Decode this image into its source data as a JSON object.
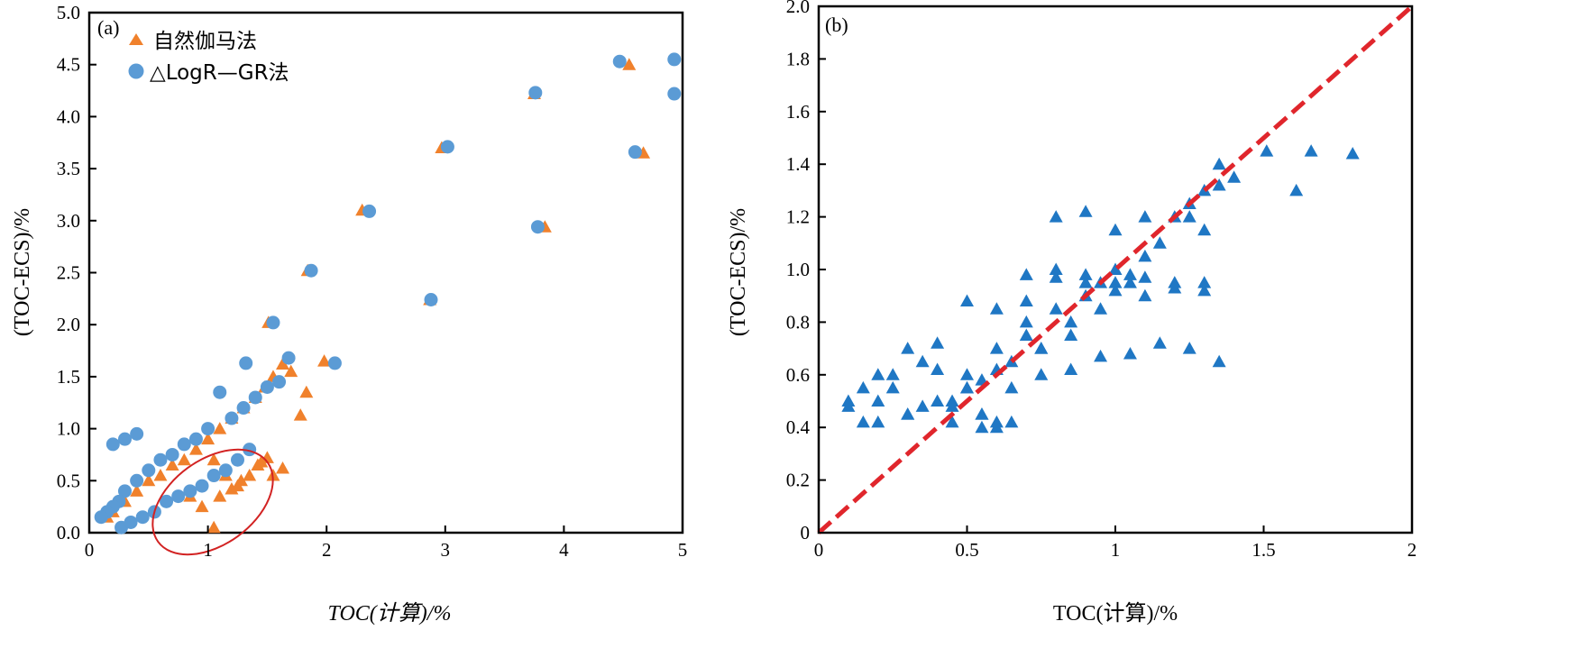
{
  "chart_data": [
    {
      "id": "a",
      "type": "scatter",
      "panel_label": "(a)",
      "xlabel": "TOC(计算)/%",
      "ylabel": "(TOC-ECS)/%",
      "xlim": [
        0,
        5
      ],
      "ylim": [
        0,
        5
      ],
      "xticks": [
        0,
        1,
        2,
        3,
        4,
        5
      ],
      "xtick_labels": [
        "0",
        "1",
        "2",
        "3",
        "4",
        "5"
      ],
      "yticks": [
        0,
        0.5,
        1,
        1.5,
        2,
        2.5,
        3,
        3.5,
        4,
        4.5,
        5
      ],
      "ytick_labels": [
        "0.0",
        "0.5",
        "1.0",
        "1.5",
        "2.0",
        "2.5",
        "3.0",
        "3.5",
        "4.0",
        "4.5",
        "5.0"
      ],
      "legend_position": "top-left",
      "annotation": "red ellipse around points near TOC 0.5-1.6, ECS 0-0.7",
      "series": [
        {
          "name": "自然伽马法",
          "legend_label": "自然伽马法",
          "marker": "triangle",
          "color": "#f0812c",
          "x": [
            4.55,
            4.67,
            3.75,
            3.84,
            2.97,
            2.3,
            1.84,
            1.51,
            2.87,
            1.98,
            1.83,
            1.78,
            1.7,
            1.63,
            1.55,
            1.48,
            1.4,
            1.3,
            1.2,
            1.1,
            1.0,
            0.9,
            0.8,
            0.7,
            0.6,
            0.5,
            0.4,
            0.3,
            0.2,
            0.15,
            1.5,
            1.42,
            1.35,
            1.28,
            1.2,
            1.1,
            1.05,
            0.95,
            0.85,
            1.63,
            1.55,
            1.45,
            1.25,
            1.15,
            1.05
          ],
          "y": [
            4.5,
            3.65,
            4.22,
            2.94,
            3.7,
            3.1,
            2.52,
            2.02,
            2.24,
            1.65,
            1.35,
            1.13,
            1.55,
            1.62,
            1.5,
            1.4,
            1.3,
            1.2,
            1.1,
            1.0,
            0.9,
            0.8,
            0.7,
            0.65,
            0.55,
            0.5,
            0.4,
            0.3,
            0.2,
            0.15,
            0.72,
            0.65,
            0.55,
            0.5,
            0.42,
            0.35,
            0.05,
            0.25,
            0.35,
            0.62,
            0.55,
            0.68,
            0.45,
            0.55,
            0.7
          ]
        },
        {
          "name": "△LogR—GR法",
          "legend_label": "△LogR—GR法",
          "marker": "circle",
          "color": "#5b9bd5",
          "x": [
            4.47,
            4.93,
            4.93,
            3.76,
            4.6,
            3.78,
            3.02,
            2.36,
            1.87,
            2.88,
            1.55,
            2.07,
            1.32,
            1.68,
            1.6,
            1.5,
            1.4,
            1.3,
            1.2,
            1.1,
            1.0,
            0.9,
            0.8,
            0.7,
            0.6,
            0.5,
            0.4,
            0.3,
            0.25,
            0.2,
            0.15,
            0.1,
            0.27,
            0.35,
            0.45,
            0.55,
            0.65,
            0.75,
            0.85,
            0.95,
            1.05,
            1.15,
            1.25,
            1.35,
            0.2,
            0.3,
            0.4
          ],
          "y": [
            4.53,
            4.55,
            4.22,
            4.23,
            3.66,
            2.94,
            3.71,
            3.09,
            2.52,
            2.24,
            2.02,
            1.63,
            1.63,
            1.68,
            1.45,
            1.4,
            1.3,
            1.2,
            1.1,
            1.35,
            1.0,
            0.9,
            0.85,
            0.75,
            0.7,
            0.6,
            0.5,
            0.4,
            0.3,
            0.25,
            0.2,
            0.15,
            0.05,
            0.1,
            0.15,
            0.2,
            0.3,
            0.35,
            0.4,
            0.45,
            0.55,
            0.6,
            0.7,
            0.8,
            0.85,
            0.9,
            0.95
          ]
        }
      ]
    },
    {
      "id": "b",
      "type": "scatter",
      "panel_label": "(b)",
      "xlabel": "TOC(计算)/%",
      "ylabel": "(TOC-ECS)/%",
      "xlim": [
        0,
        2
      ],
      "ylim": [
        0,
        2
      ],
      "xticks": [
        0,
        0.5,
        1,
        1.5,
        2
      ],
      "xtick_labels": [
        "0",
        "0.5",
        "1",
        "1.5",
        "2"
      ],
      "yticks": [
        0,
        0.2,
        0.4,
        0.6,
        0.8,
        1.0,
        1.2,
        1.4,
        1.6,
        1.8,
        2.0
      ],
      "ytick_labels": [
        "0",
        "0.2",
        "0.4",
        "0.6",
        "0.8",
        "1.0",
        "1.2",
        "1.4",
        "1.6",
        "1.8",
        "2.0"
      ],
      "series": [
        {
          "name": "data",
          "marker": "triangle",
          "color": "#1f77c4",
          "x": [
            0.1,
            0.15,
            0.2,
            0.25,
            0.3,
            0.35,
            0.4,
            0.45,
            0.5,
            0.55,
            0.6,
            0.65,
            0.7,
            0.75,
            0.8,
            0.85,
            0.9,
            0.95,
            1.0,
            1.05,
            1.1,
            1.15,
            1.2,
            1.25,
            1.3,
            1.35,
            1.4,
            0.2,
            0.3,
            0.4,
            0.5,
            0.6,
            0.7,
            0.8,
            0.9,
            1.0,
            1.1,
            1.2,
            1.3,
            0.15,
            0.25,
            0.35,
            0.45,
            0.55,
            0.65,
            0.75,
            0.85,
            0.95,
            1.05,
            0.7,
            0.8,
            0.9,
            1.0,
            1.1,
            1.2,
            1.3,
            0.5,
            0.6,
            0.55,
            0.65,
            0.75,
            0.85,
            0.95,
            1.05,
            1.15,
            1.25,
            1.35,
            0.45,
            0.55,
            0.6,
            1.51,
            1.61,
            1.66,
            1.8,
            1.25,
            1.3,
            1.35,
            0.1,
            0.2,
            0.3,
            0.4,
            0.5,
            0.6,
            0.7,
            0.8,
            0.9,
            1.0,
            1.1
          ],
          "y": [
            0.48,
            0.42,
            0.6,
            0.55,
            0.7,
            0.65,
            0.72,
            0.5,
            0.6,
            0.45,
            0.4,
            0.55,
            0.75,
            0.7,
            0.85,
            0.8,
            0.9,
            0.95,
            1.0,
            0.98,
            1.05,
            1.1,
            1.2,
            1.25,
            1.3,
            1.32,
            1.35,
            0.5,
            0.45,
            0.62,
            0.55,
            0.62,
            0.88,
            0.97,
            0.98,
            0.95,
            0.9,
            0.93,
            0.92,
            0.55,
            0.6,
            0.48,
            0.42,
            0.58,
            0.65,
            0.7,
            0.75,
            0.85,
            0.95,
            0.98,
            1.0,
            0.95,
            0.92,
            0.97,
            0.95,
            0.95,
            0.88,
            0.85,
            0.4,
            0.42,
            0.6,
            0.62,
            0.67,
            0.68,
            0.72,
            0.7,
            0.65,
            0.48,
            0.45,
            0.42,
            1.45,
            1.3,
            1.45,
            1.44,
            1.2,
            1.15,
            1.4,
            0.5,
            0.42,
            0.45,
            0.5,
            0.55,
            0.7,
            0.8,
            1.2,
            1.22,
            1.15,
            1.2
          ],
          "extra_cloud": true
        },
        {
          "name": "1:1 line",
          "type": "line",
          "style": "dashed",
          "color": "#e0262c",
          "x": [
            0,
            2
          ],
          "y": [
            0,
            2
          ]
        }
      ]
    }
  ]
}
